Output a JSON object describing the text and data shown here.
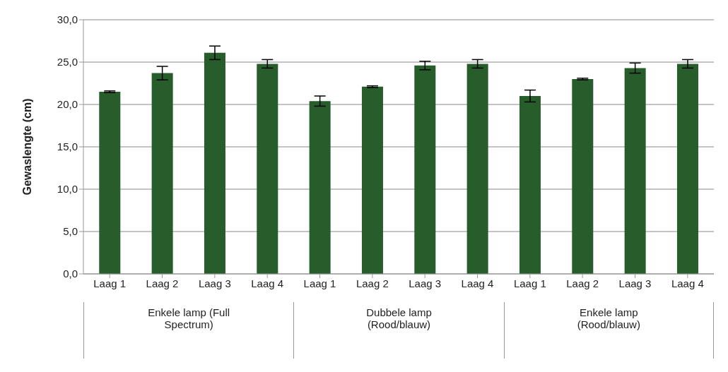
{
  "chart_data": {
    "type": "bar",
    "ylabel": "Gewaslengte (cm)",
    "categories": [
      "Laag 1",
      "Laag 2",
      "Laag 3",
      "Laag 4",
      "Laag 1",
      "Laag 2",
      "Laag 3",
      "Laag 4",
      "Laag 1",
      "Laag 2",
      "Laag 3",
      "Laag 4"
    ],
    "values": [
      21.5,
      23.7,
      26.1,
      24.8,
      20.4,
      22.1,
      24.6,
      24.8,
      21.0,
      23.0,
      24.3,
      24.8
    ],
    "errors": [
      0.1,
      0.8,
      0.8,
      0.5,
      0.6,
      0.1,
      0.5,
      0.5,
      0.7,
      0.1,
      0.6,
      0.5
    ],
    "color": "#275c2b",
    "ylim": [
      0,
      30
    ],
    "yticks": [
      {
        "value": 0,
        "label": "0,0"
      },
      {
        "value": 5,
        "label": "5,0"
      },
      {
        "value": 10,
        "label": "10,0"
      },
      {
        "value": 15,
        "label": "15,0"
      },
      {
        "value": 20,
        "label": "20,0"
      },
      {
        "value": 25,
        "label": "25,0"
      },
      {
        "value": 30,
        "label": "30,0"
      }
    ],
    "grid": "y",
    "annotations": [
      "Enkele lamp (Full Spectrum)",
      "Dubbele lamp (Rood/blauw)",
      "Enkele lamp (Rood/blauw)"
    ]
  }
}
